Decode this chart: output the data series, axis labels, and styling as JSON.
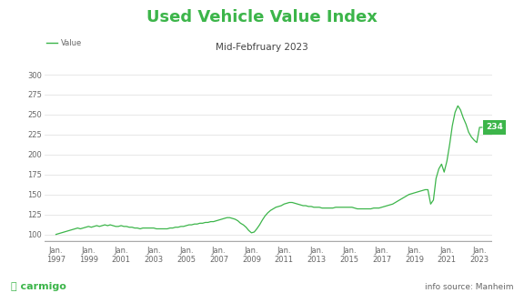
{
  "title": "Used Vehicle Value Index",
  "subtitle": "Mid-Febfruary 2023",
  "line_color": "#3cb54a",
  "background_color": "#ffffff",
  "ylabel_values": [
    100,
    125,
    150,
    175,
    200,
    225,
    250,
    275,
    300
  ],
  "x_tick_labels": [
    "Jan.\n1997",
    "Jan.\n1999",
    "Jan.\n2001",
    "Jan.\n2003",
    "Jan.\n2005",
    "Jan.\n2007",
    "Jan.\n2009",
    "Jan.\n2011",
    "Jan.\n2013",
    "Jan.\n2015",
    "Jan.\n2017",
    "Jan.\n2019",
    "Jan.\n2021",
    "Jan.\n2023"
  ],
  "x_positions": [
    1997,
    1999,
    2001,
    2003,
    2005,
    2007,
    2009,
    2011,
    2013,
    2015,
    2017,
    2019,
    2021,
    2023
  ],
  "end_label": "234",
  "end_label_bg": "#3cb54a",
  "end_label_color": "#ffffff",
  "legend_label": "Value",
  "source_text": "info source: Manheim",
  "brand_text": "Ⓜ carmigo",
  "title_color": "#3cb54a",
  "subtitle_color": "#444444",
  "tick_color": "#666666",
  "grid_color": "#dddddd",
  "bottom_line_color": "#aaaaaa",
  "title_fontsize": 13,
  "subtitle_fontsize": 7.5,
  "tick_fontsize": 6,
  "legend_fontsize": 6,
  "brand_fontsize": 8,
  "source_fontsize": 6.5,
  "ylim": [
    90,
    310
  ],
  "xlim": [
    1996.3,
    2023.8
  ],
  "data_x": [
    1997.0,
    1997.17,
    1997.33,
    1997.5,
    1997.67,
    1997.83,
    1998.0,
    1998.17,
    1998.33,
    1998.5,
    1998.67,
    1998.83,
    1999.0,
    1999.17,
    1999.33,
    1999.5,
    1999.67,
    1999.83,
    2000.0,
    2000.17,
    2000.33,
    2000.5,
    2000.67,
    2000.83,
    2001.0,
    2001.17,
    2001.33,
    2001.5,
    2001.67,
    2001.83,
    2002.0,
    2002.17,
    2002.33,
    2002.5,
    2002.67,
    2002.83,
    2003.0,
    2003.17,
    2003.33,
    2003.5,
    2003.67,
    2003.83,
    2004.0,
    2004.17,
    2004.33,
    2004.5,
    2004.67,
    2004.83,
    2005.0,
    2005.17,
    2005.33,
    2005.5,
    2005.67,
    2005.83,
    2006.0,
    2006.17,
    2006.33,
    2006.5,
    2006.67,
    2006.83,
    2007.0,
    2007.17,
    2007.33,
    2007.5,
    2007.67,
    2007.83,
    2008.0,
    2008.17,
    2008.33,
    2008.5,
    2008.67,
    2008.83,
    2009.0,
    2009.17,
    2009.33,
    2009.5,
    2009.67,
    2009.83,
    2010.0,
    2010.17,
    2010.33,
    2010.5,
    2010.67,
    2010.83,
    2011.0,
    2011.17,
    2011.33,
    2011.5,
    2011.67,
    2011.83,
    2012.0,
    2012.17,
    2012.33,
    2012.5,
    2012.67,
    2012.83,
    2013.0,
    2013.17,
    2013.33,
    2013.5,
    2013.67,
    2013.83,
    2014.0,
    2014.17,
    2014.33,
    2014.5,
    2014.67,
    2014.83,
    2015.0,
    2015.17,
    2015.33,
    2015.5,
    2015.67,
    2015.83,
    2016.0,
    2016.17,
    2016.33,
    2016.5,
    2016.67,
    2016.83,
    2017.0,
    2017.17,
    2017.33,
    2017.5,
    2017.67,
    2017.83,
    2018.0,
    2018.17,
    2018.33,
    2018.5,
    2018.67,
    2018.83,
    2019.0,
    2019.17,
    2019.33,
    2019.5,
    2019.67,
    2019.83,
    2020.0,
    2020.17,
    2020.33,
    2020.5,
    2020.67,
    2020.83,
    2021.0,
    2021.17,
    2021.33,
    2021.5,
    2021.67,
    2021.83,
    2022.0,
    2022.17,
    2022.33,
    2022.5,
    2022.67,
    2022.83,
    2023.0,
    2023.15
  ],
  "data_y": [
    100,
    101,
    102,
    103,
    104,
    105,
    106,
    107,
    108,
    107,
    108,
    109,
    110,
    109,
    110,
    111,
    110,
    111,
    112,
    111,
    112,
    111,
    110,
    110,
    111,
    110,
    110,
    109,
    109,
    108,
    108,
    107,
    108,
    108,
    108,
    108,
    108,
    107,
    107,
    107,
    107,
    107,
    108,
    108,
    109,
    109,
    110,
    110,
    111,
    112,
    112,
    113,
    113,
    114,
    114,
    115,
    115,
    116,
    116,
    117,
    118,
    119,
    120,
    121,
    121,
    120,
    119,
    117,
    114,
    112,
    109,
    105,
    102,
    103,
    107,
    112,
    118,
    123,
    127,
    130,
    132,
    134,
    135,
    136,
    138,
    139,
    140,
    140,
    139,
    138,
    137,
    136,
    136,
    135,
    135,
    134,
    134,
    134,
    133,
    133,
    133,
    133,
    133,
    134,
    134,
    134,
    134,
    134,
    134,
    134,
    133,
    132,
    132,
    132,
    132,
    132,
    132,
    133,
    133,
    133,
    134,
    135,
    136,
    137,
    138,
    140,
    142,
    144,
    146,
    148,
    150,
    151,
    152,
    153,
    154,
    155,
    156,
    156,
    138,
    143,
    170,
    182,
    188,
    178,
    192,
    213,
    236,
    253,
    261,
    256,
    246,
    238,
    228,
    222,
    218,
    215,
    234,
    234
  ]
}
